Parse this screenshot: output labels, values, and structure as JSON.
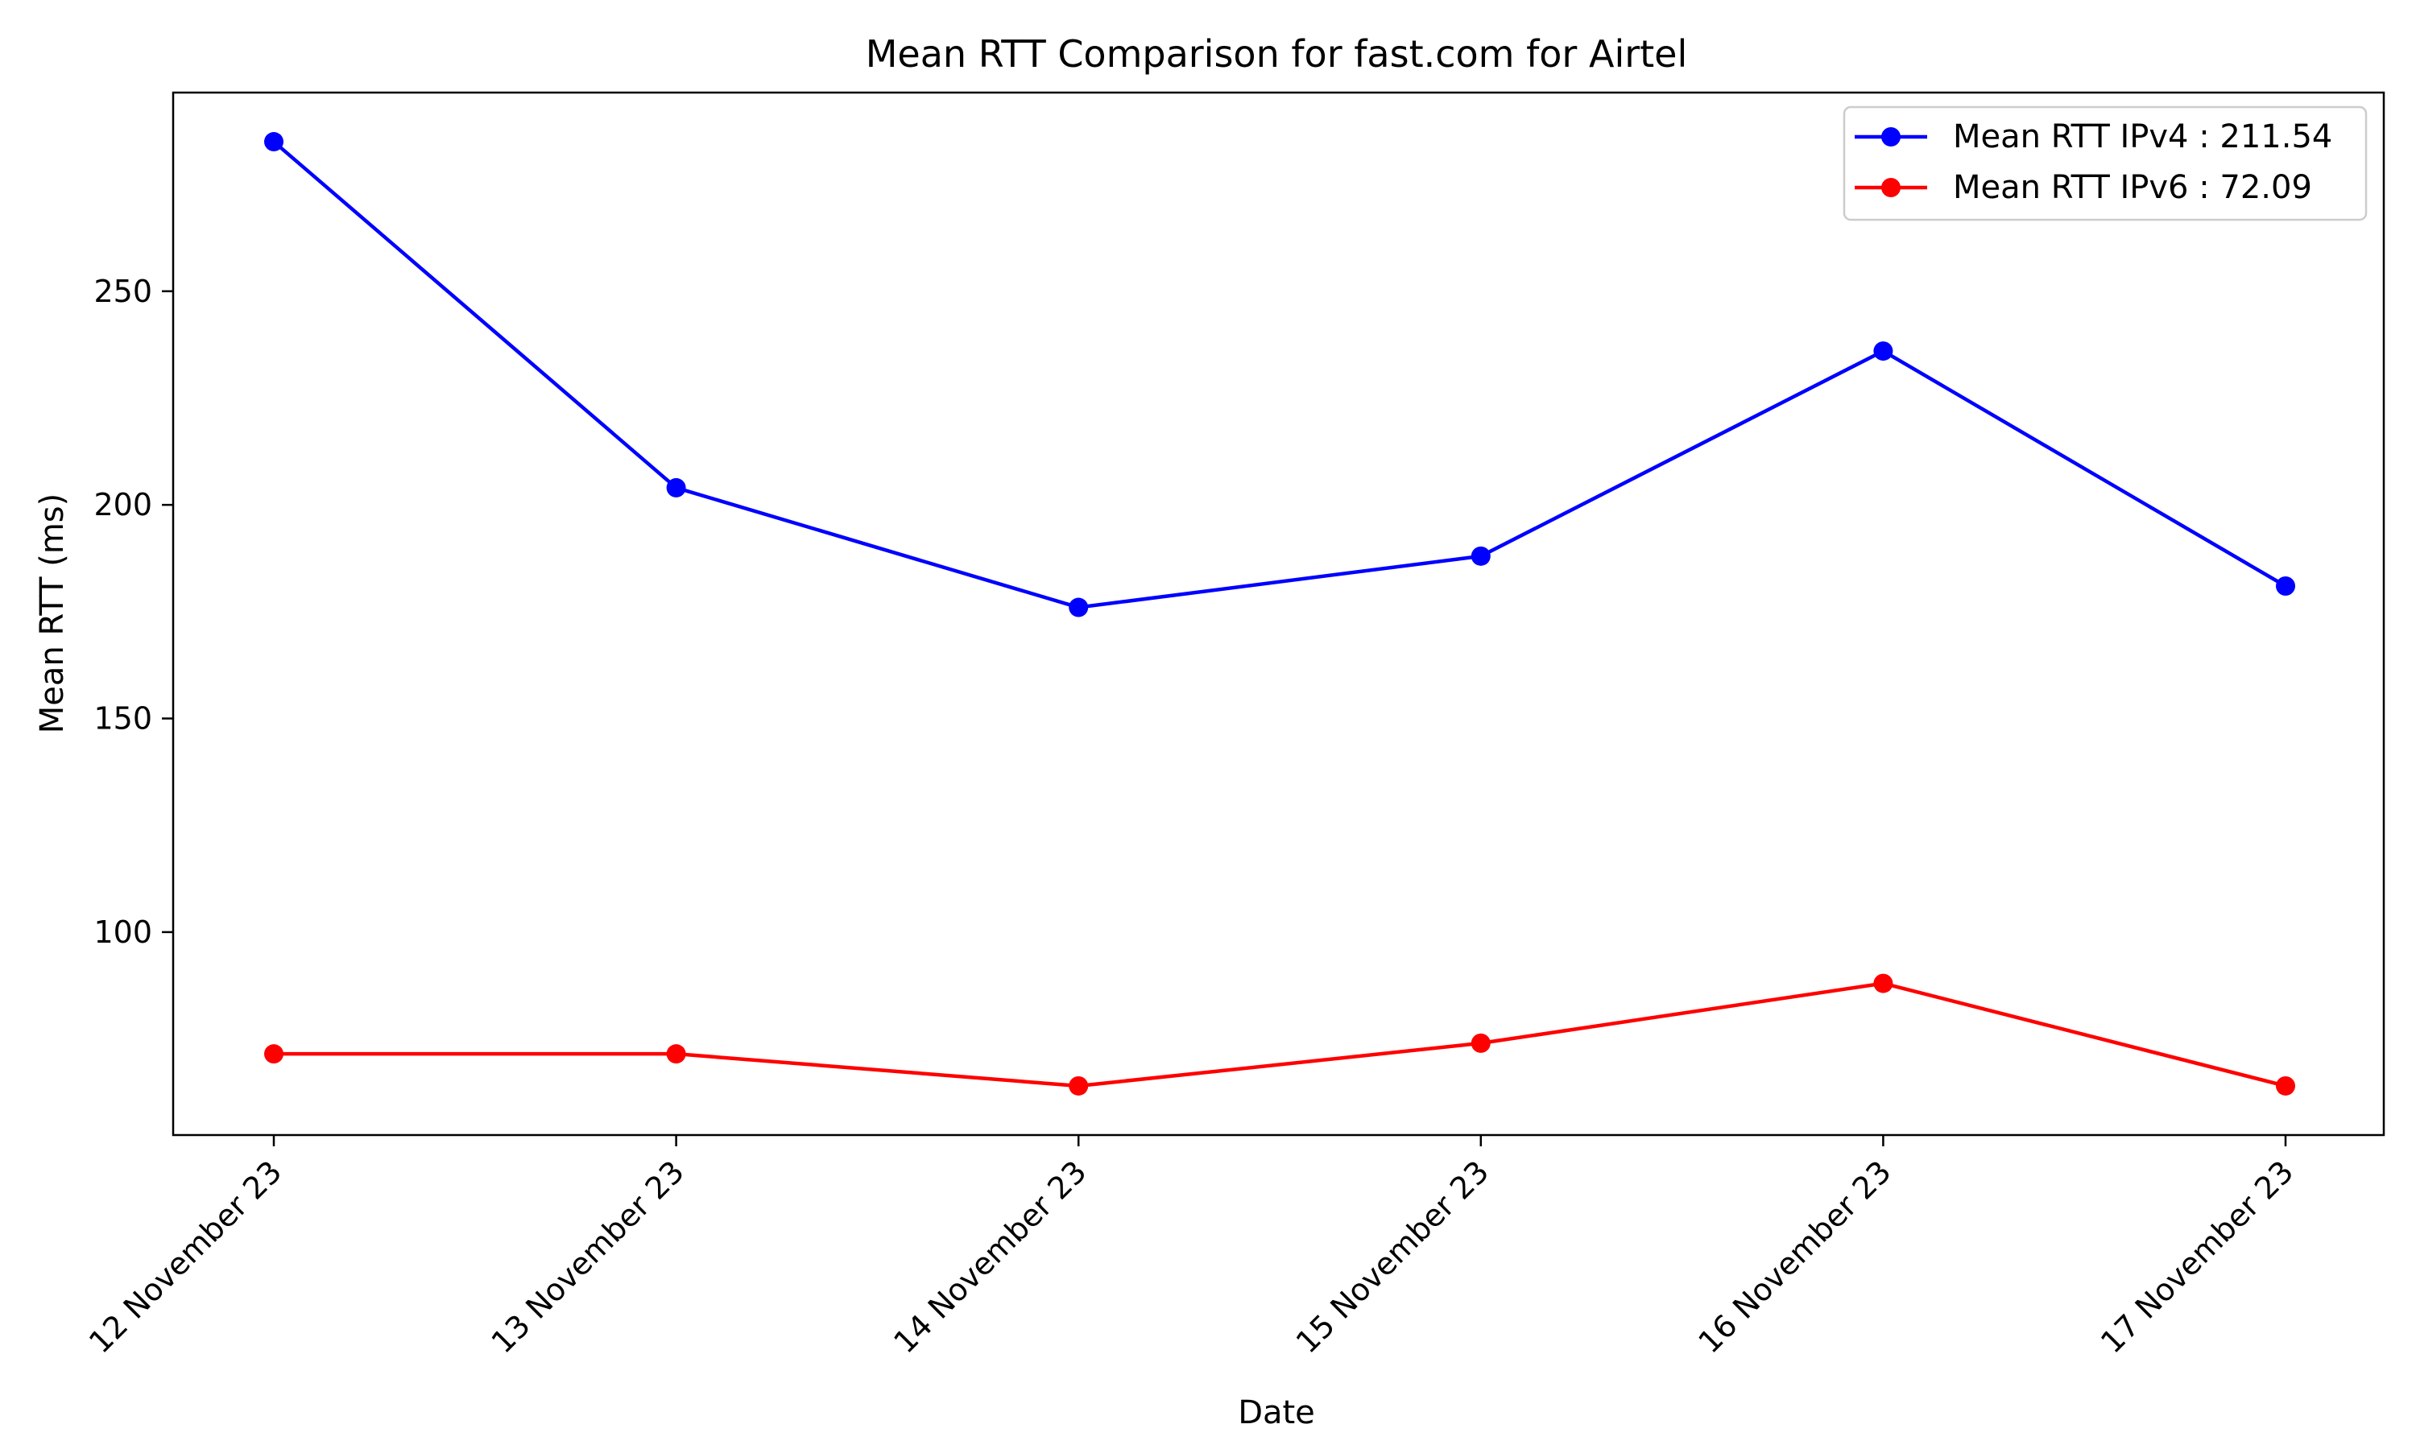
{
  "chart_data": {
    "type": "line",
    "title": "Mean RTT Comparison for fast.com for Airtel",
    "xlabel": "Date",
    "ylabel": "Mean RTT (ms)",
    "categories": [
      "12 November 23",
      "13 November 23",
      "14 November 23",
      "15 November 23",
      "16 November 23",
      "17 November 23"
    ],
    "series": [
      {
        "name": "Mean RTT IPv4 : 211.54",
        "color": "#0000ff",
        "marker": "circle",
        "values": [
          285,
          204,
          176,
          188,
          236,
          181
        ]
      },
      {
        "name": "Mean RTT IPv6 : 72.09",
        "color": "#ff0000",
        "marker": "circle",
        "values": [
          71.5,
          71.5,
          64,
          74,
          88,
          64
        ]
      }
    ],
    "ylim": [
      52.5,
      296.5
    ],
    "yticks": [
      100,
      150,
      200,
      250
    ],
    "legend_position": "top-right",
    "grid": false
  }
}
